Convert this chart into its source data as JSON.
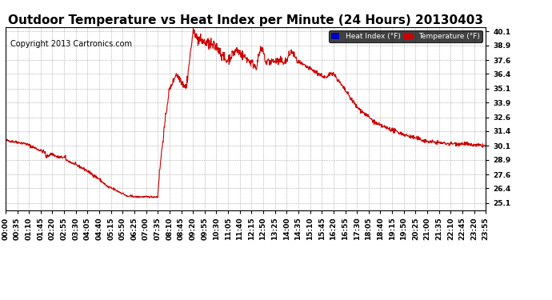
{
  "title": "Outdoor Temperature vs Heat Index per Minute (24 Hours) 20130403",
  "copyright": "Copyright 2013 Cartronics.com",
  "legend_labels": [
    "Heat Index (°F)",
    "Temperature (°F)"
  ],
  "legend_bg_colors": [
    "#0000bb",
    "#cc0000"
  ],
  "line_color": "#cc0000",
  "background_color": "#ffffff",
  "plot_bg_color": "#ffffff",
  "grid_color": "#999999",
  "yticks": [
    25.1,
    26.4,
    27.6,
    28.9,
    30.1,
    31.4,
    32.6,
    33.9,
    35.1,
    36.4,
    37.6,
    38.9,
    40.1
  ],
  "ylim": [
    24.5,
    40.5
  ],
  "xlim_minutes": 1435,
  "xtick_step": 35,
  "title_fontsize": 11,
  "axis_fontsize": 6.5,
  "copyright_fontsize": 7
}
